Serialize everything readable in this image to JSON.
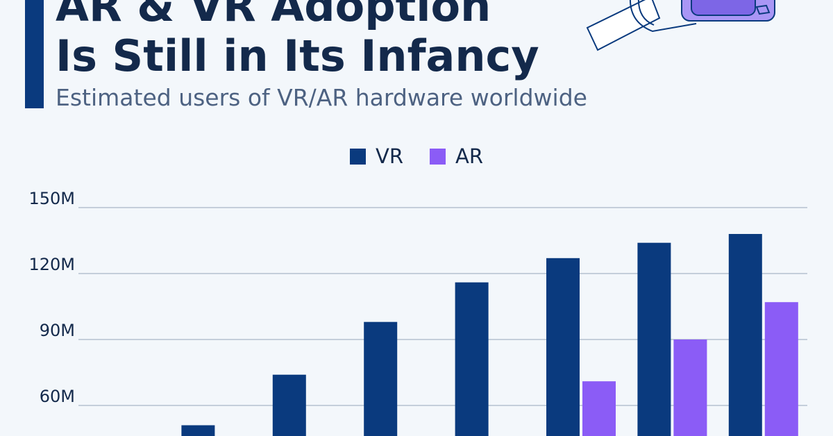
{
  "header": {
    "title_line1": "AR & VR Adoption",
    "title_line2": "Is Still in Its Infancy",
    "subtitle": "Estimated users of VR/AR hardware worldwide"
  },
  "icons": {
    "illustration": "vr-headset-icon"
  },
  "colors": {
    "accent": "#0a3a7e",
    "vr": "#0a3a7e",
    "ar": "#8b5cf6",
    "grid": "#a9b6c6"
  },
  "chart_data": {
    "type": "bar",
    "title": "AR & VR Adoption Is Still in Its Infancy",
    "subtitle": "Estimated users of VR/AR hardware worldwide",
    "legend_position": "top-center",
    "grid": true,
    "y_ticks": [
      "60M",
      "90M",
      "120M",
      "150M"
    ],
    "y_tick_values": [
      60,
      90,
      120,
      150
    ],
    "ylim": [
      48,
      153
    ],
    "series": [
      {
        "name": "VR",
        "color": "#0a3a7e",
        "values": [
          null,
          51,
          74,
          98,
          116,
          127,
          134,
          138
        ]
      },
      {
        "name": "AR",
        "color": "#8b5cf6",
        "values": [
          null,
          null,
          null,
          null,
          null,
          71,
          90,
          107
        ]
      }
    ]
  }
}
